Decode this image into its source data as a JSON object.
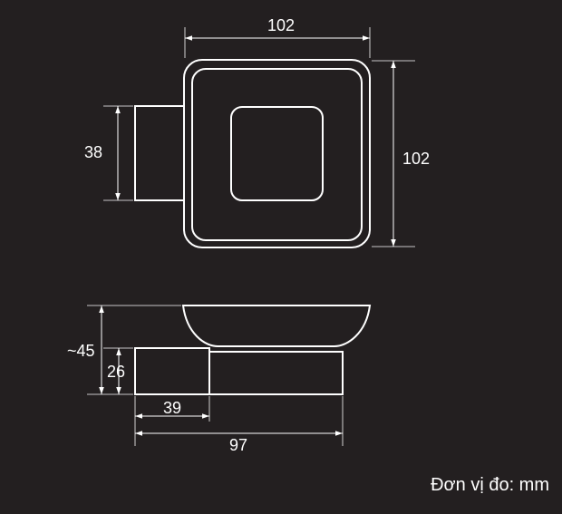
{
  "colors": {
    "background": "#231f20",
    "line": "#ffffff"
  },
  "dimensions": {
    "top_width": "102",
    "right_height": "102",
    "mount_height": "38",
    "total_height": "~45",
    "base_height": "26",
    "base_width": "39",
    "total_width": "97"
  },
  "unit_label": "Đơn vị đo: mm"
}
